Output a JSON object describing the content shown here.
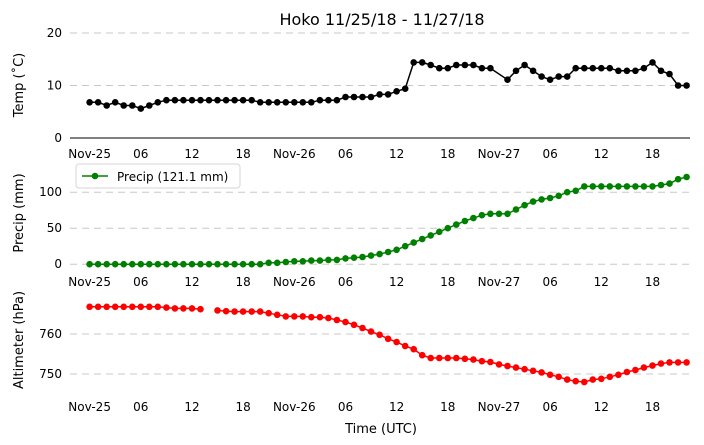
{
  "chart_data": {
    "title": "Hoko 11/25/18 - 11/27/18",
    "xlabel": "Time (UTC)",
    "x_tick_labels": [
      "Nov-25",
      "06",
      "12",
      "18",
      "Nov-26",
      "06",
      "12",
      "18",
      "Nov-27",
      "06",
      "12",
      "18"
    ],
    "x_tick_hours": [
      0,
      6,
      12,
      18,
      24,
      30,
      36,
      42,
      48,
      54,
      60,
      66
    ],
    "x_range_hours": [
      -2.3,
      70.4
    ],
    "panels": [
      {
        "type": "line",
        "ylabel": "Temp (˚C)",
        "ylim": [
          0,
          20
        ],
        "yticks": [
          0,
          10,
          20
        ],
        "grid": true,
        "color": "#000000",
        "x_hours": [
          0,
          1,
          2,
          3,
          4,
          5,
          6,
          7,
          8,
          9,
          10,
          11,
          12,
          13,
          14,
          15,
          16,
          17,
          18,
          19,
          20,
          21,
          22,
          23,
          24,
          25,
          26,
          27,
          28,
          29,
          30,
          31,
          32,
          33,
          34,
          35,
          36,
          37,
          38,
          39,
          40,
          41,
          42,
          43,
          44,
          45,
          46,
          47,
          49,
          50,
          51,
          52,
          53,
          54,
          55,
          56,
          57,
          58,
          59,
          60,
          61,
          62,
          63,
          64,
          65,
          66,
          67,
          68,
          69,
          70
        ],
        "values": [
          6.8,
          6.8,
          6.2,
          6.8,
          6.2,
          6.2,
          5.6,
          6.2,
          6.8,
          7.2,
          7.2,
          7.2,
          7.2,
          7.2,
          7.2,
          7.2,
          7.2,
          7.2,
          7.2,
          7.2,
          6.8,
          6.8,
          6.8,
          6.8,
          6.8,
          6.8,
          6.8,
          7.2,
          7.2,
          7.2,
          7.8,
          7.8,
          7.8,
          7.8,
          8.3,
          8.3,
          8.9,
          9.4,
          14.4,
          14.4,
          13.9,
          13.3,
          13.3,
          13.9,
          13.9,
          13.9,
          13.3,
          13.3,
          11.1,
          12.8,
          13.9,
          12.8,
          11.7,
          11.1,
          11.7,
          11.7,
          13.3,
          13.3,
          13.3,
          13.3,
          13.3,
          12.8,
          12.8,
          12.8,
          13.3,
          14.4,
          12.8,
          12.2,
          10.0,
          10.0
        ]
      },
      {
        "type": "line",
        "ylabel": "Precip (mm)",
        "ylim": [
          -15,
          135
        ],
        "yticks": [
          0,
          50,
          100
        ],
        "grid": true,
        "color": "#008000",
        "legend": {
          "label": "Precip (121.1 mm)",
          "position": "upper-left"
        },
        "x_hours": [
          0,
          1,
          2,
          3,
          4,
          5,
          6,
          7,
          8,
          9,
          10,
          11,
          12,
          13,
          14,
          15,
          16,
          17,
          18,
          19,
          20,
          21,
          22,
          23,
          24,
          25,
          26,
          27,
          28,
          29,
          30,
          31,
          32,
          33,
          34,
          35,
          36,
          37,
          38,
          39,
          40,
          41,
          42,
          43,
          44,
          45,
          46,
          47,
          48,
          49,
          50,
          51,
          52,
          53,
          54,
          55,
          56,
          57,
          58,
          59,
          60,
          61,
          62,
          63,
          64,
          65,
          66,
          67,
          68,
          69,
          70
        ],
        "values": [
          0,
          0,
          0,
          0,
          0,
          0,
          0,
          0,
          0,
          0,
          0,
          0,
          0,
          0,
          0,
          0,
          0,
          0,
          0,
          0,
          0,
          2,
          2,
          3,
          4,
          4,
          5,
          5,
          6,
          6,
          8,
          9,
          10,
          12,
          14,
          17,
          20,
          25,
          30,
          35,
          40,
          45,
          50,
          55,
          60,
          64,
          68,
          70,
          70,
          70,
          76,
          82,
          87,
          90,
          92,
          95,
          100,
          102,
          108,
          108,
          108,
          108,
          108,
          108,
          108,
          108,
          108,
          110,
          112,
          118,
          121.1
        ]
      },
      {
        "type": "line",
        "ylabel": "Altimeter (hPa)",
        "ylim": [
          744,
          771
        ],
        "yticks": [
          750,
          760
        ],
        "grid": true,
        "color": "#ff0000",
        "x_hours": [
          0,
          1,
          2,
          3,
          4,
          5,
          6,
          7,
          8,
          9,
          10,
          11,
          12,
          13,
          null,
          15,
          16,
          17,
          18,
          19,
          20,
          21,
          22,
          23,
          24,
          25,
          26,
          27,
          28,
          29,
          30,
          31,
          32,
          33,
          34,
          35,
          36,
          37,
          38,
          39,
          40,
          41,
          42,
          43,
          44,
          45,
          46,
          47,
          48,
          49,
          50,
          51,
          52,
          53,
          54,
          55,
          56,
          57,
          58,
          59,
          60,
          61,
          62,
          63,
          64,
          65,
          66,
          67,
          68,
          69,
          70
        ],
        "values": [
          766.8,
          766.8,
          766.8,
          766.8,
          766.8,
          766.8,
          766.8,
          766.8,
          766.8,
          766.6,
          766.4,
          766.4,
          766.4,
          766.2,
          null,
          765.9,
          765.7,
          765.6,
          765.6,
          765.6,
          765.6,
          765.2,
          764.8,
          764.4,
          764.4,
          764.4,
          764.2,
          764.2,
          764.0,
          763.5,
          763.0,
          762.3,
          761.5,
          760.6,
          759.8,
          758.8,
          758.0,
          757.0,
          756.2,
          754.7,
          754.0,
          754.0,
          754.0,
          754.0,
          753.8,
          753.6,
          753.2,
          753.0,
          752.4,
          752.0,
          751.6,
          751.2,
          750.8,
          750.4,
          749.8,
          749.3,
          748.6,
          748.2,
          748.0,
          748.6,
          748.8,
          749.3,
          749.8,
          750.5,
          751.0,
          751.6,
          752.1,
          752.6,
          752.9,
          752.9,
          752.9
        ]
      }
    ]
  }
}
